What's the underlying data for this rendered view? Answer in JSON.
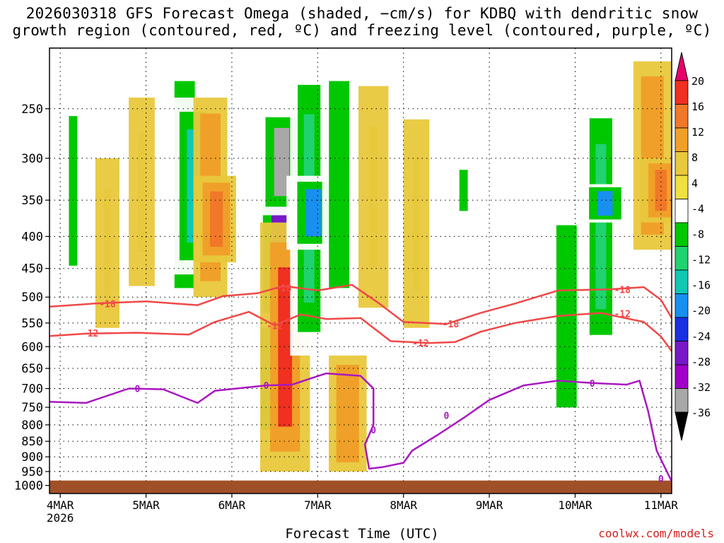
{
  "title": {
    "line1": "2026030318 GFS Forecast Omega (shaded, −cm/s) for KDBQ with dendritic snow",
    "line2": "growth region (contoured, red, ºC) and freezing level (contoured, purple, ºC)"
  },
  "xlabel": "Forecast Time (UTC)",
  "credit": "coolwx.com/models",
  "chart_data": {
    "type": "heatmap",
    "y_axis": {
      "ticks": [
        250,
        300,
        350,
        400,
        450,
        500,
        550,
        600,
        650,
        700,
        750,
        800,
        850,
        900,
        950,
        1000
      ],
      "range": [
        200,
        1030
      ],
      "label": ""
    },
    "x_axis": {
      "ticks": [
        "4MAR",
        "5MAR",
        "6MAR",
        "7MAR",
        "8MAR",
        "9MAR",
        "10MAR",
        "11MAR"
      ],
      "sublabel": "2026",
      "range_days": [
        3.875,
        11.125
      ]
    },
    "colorbar": {
      "labels": [
        20,
        16,
        12,
        8,
        4,
        -4,
        -8,
        -12,
        -16,
        -20,
        -24,
        -28,
        -32,
        -36
      ],
      "colors": [
        "#e8006a",
        "#f03020",
        "#f07828",
        "#f0a028",
        "#e8c83c",
        "#f0e040",
        "#ffffff",
        "#00c800",
        "#20d270",
        "#10c8b4",
        "#1890f0",
        "#1830e0",
        "#7818c8",
        "#a000c8",
        "#a8a8a8",
        "#000000"
      ]
    },
    "omega_regions": [
      {
        "t": 4.15,
        "p": [
          220,
          520
        ],
        "v": -8
      },
      {
        "t": 4.55,
        "p": [
          300,
          560
        ],
        "v": 5
      },
      {
        "t": 4.95,
        "p": [
          240,
          480
        ],
        "v": 6
      },
      {
        "t": 5.45,
        "p": [
          210,
          520
        ],
        "v": -10
      },
      {
        "t": 5.55,
        "p": [
          240,
          460
        ],
        "v": -16
      },
      {
        "t": 5.75,
        "p": [
          240,
          500
        ],
        "v": 10
      },
      {
        "t": 5.82,
        "p": [
          320,
          440
        ],
        "v": 16
      },
      {
        "t": 6.2,
        "p": [
          210,
          480
        ],
        "v": -6
      },
      {
        "t": 6.5,
        "p": [
          260,
          900
        ],
        "v": -16
      },
      {
        "t": 6.55,
        "p": [
          280,
          560
        ],
        "v": -28
      },
      {
        "t": 6.58,
        "p": [
          250,
          370
        ],
        "v": -36
      },
      {
        "t": 6.62,
        "p": [
          380,
          950
        ],
        "v": 18
      },
      {
        "t": 6.9,
        "p": [
          210,
          620
        ],
        "v": -12
      },
      {
        "t": 6.95,
        "p": [
          320,
          420
        ],
        "v": -22
      },
      {
        "t": 7.25,
        "p": [
          210,
          520
        ],
        "v": -10
      },
      {
        "t": 7.35,
        "p": [
          620,
          950
        ],
        "v": 12
      },
      {
        "t": 7.65,
        "p": [
          230,
          520
        ],
        "v": 8
      },
      {
        "t": 8.15,
        "p": [
          260,
          560
        ],
        "v": 6
      },
      {
        "t": 8.7,
        "p": [
          300,
          380
        ],
        "v": -8
      },
      {
        "t": 9.9,
        "p": [
          360,
          800
        ],
        "v": -10
      },
      {
        "t": 10.3,
        "p": [
          240,
          620
        ],
        "v": -12
      },
      {
        "t": 10.35,
        "p": [
          330,
          380
        ],
        "v": -20
      },
      {
        "t": 10.9,
        "p": [
          210,
          420
        ],
        "v": 12
      },
      {
        "t": 11.0,
        "p": [
          300,
          380
        ],
        "v": 14
      }
    ],
    "contours": [
      {
        "label": "-18",
        "color": "#f04848",
        "points": [
          [
            3.875,
            518
          ],
          [
            4.4,
            512
          ],
          [
            5.0,
            508
          ],
          [
            5.6,
            515
          ],
          [
            5.9,
            498
          ],
          [
            6.3,
            493
          ],
          [
            6.6,
            480
          ],
          [
            7.0,
            488
          ],
          [
            7.4,
            478
          ],
          [
            7.7,
            510
          ],
          [
            8.0,
            548
          ],
          [
            8.5,
            552
          ],
          [
            8.9,
            530
          ],
          [
            9.3,
            512
          ],
          [
            9.8,
            488
          ],
          [
            10.4,
            486
          ],
          [
            10.8,
            482
          ],
          [
            11.0,
            505
          ],
          [
            11.125,
            540
          ]
        ]
      },
      {
        "label": "-12",
        "color": "#f04848",
        "points": [
          [
            3.875,
            577
          ],
          [
            4.3,
            572
          ],
          [
            4.9,
            570
          ],
          [
            5.5,
            574
          ],
          [
            5.8,
            548
          ],
          [
            6.2,
            528
          ],
          [
            6.5,
            555
          ],
          [
            6.8,
            533
          ],
          [
            7.1,
            542
          ],
          [
            7.5,
            540
          ],
          [
            7.85,
            588
          ],
          [
            8.3,
            592
          ],
          [
            8.6,
            590
          ],
          [
            8.9,
            568
          ],
          [
            9.3,
            550
          ],
          [
            9.8,
            536
          ],
          [
            10.3,
            530
          ],
          [
            10.8,
            548
          ],
          [
            11.0,
            578
          ],
          [
            11.125,
            610
          ]
        ]
      },
      {
        "label": "0",
        "color": "#a818c0",
        "points": [
          [
            3.875,
            735
          ],
          [
            4.3,
            738
          ],
          [
            4.8,
            700
          ],
          [
            5.2,
            702
          ],
          [
            5.6,
            738
          ],
          [
            5.8,
            706
          ],
          [
            6.4,
            692
          ],
          [
            6.7,
            690
          ],
          [
            7.1,
            662
          ],
          [
            7.5,
            668
          ],
          [
            7.65,
            700
          ],
          [
            7.65,
            800
          ],
          [
            7.55,
            860
          ],
          [
            7.6,
            940
          ],
          [
            7.75,
            935
          ],
          [
            8.0,
            920
          ],
          [
            8.1,
            880
          ],
          [
            8.4,
            830
          ],
          [
            8.7,
            780
          ],
          [
            9.0,
            730
          ],
          [
            9.4,
            692
          ],
          [
            9.8,
            680
          ],
          [
            10.2,
            686
          ],
          [
            10.6,
            690
          ],
          [
            10.75,
            680
          ],
          [
            10.85,
            760
          ],
          [
            10.95,
            880
          ],
          [
            11.125,
            985
          ]
        ]
      }
    ],
    "contour_labels": [
      {
        "text": "-18",
        "t": 6.6,
        "p": 483
      },
      {
        "text": "-18",
        "t": 4.55,
        "p": 512
      },
      {
        "text": "-12",
        "t": 4.35,
        "p": 571
      },
      {
        "text": "-12",
        "t": 6.5,
        "p": 555
      },
      {
        "text": "-18",
        "t": 8.55,
        "p": 552
      },
      {
        "text": "-12",
        "t": 8.2,
        "p": 592
      },
      {
        "text": "-18",
        "t": 10.55,
        "p": 486
      },
      {
        "text": "-12",
        "t": 10.55,
        "p": 531
      },
      {
        "text": "0",
        "t": 4.9,
        "p": 700
      },
      {
        "text": "0",
        "t": 6.4,
        "p": 692
      },
      {
        "text": "0",
        "t": 7.65,
        "p": 815
      },
      {
        "text": "0",
        "t": 8.5,
        "p": 773
      },
      {
        "text": "0",
        "t": 10.2,
        "p": 686
      },
      {
        "text": "0",
        "t": 11.0,
        "p": 975
      }
    ],
    "terrain": {
      "color": "#a05028",
      "p_top": 982
    },
    "grid": true
  }
}
